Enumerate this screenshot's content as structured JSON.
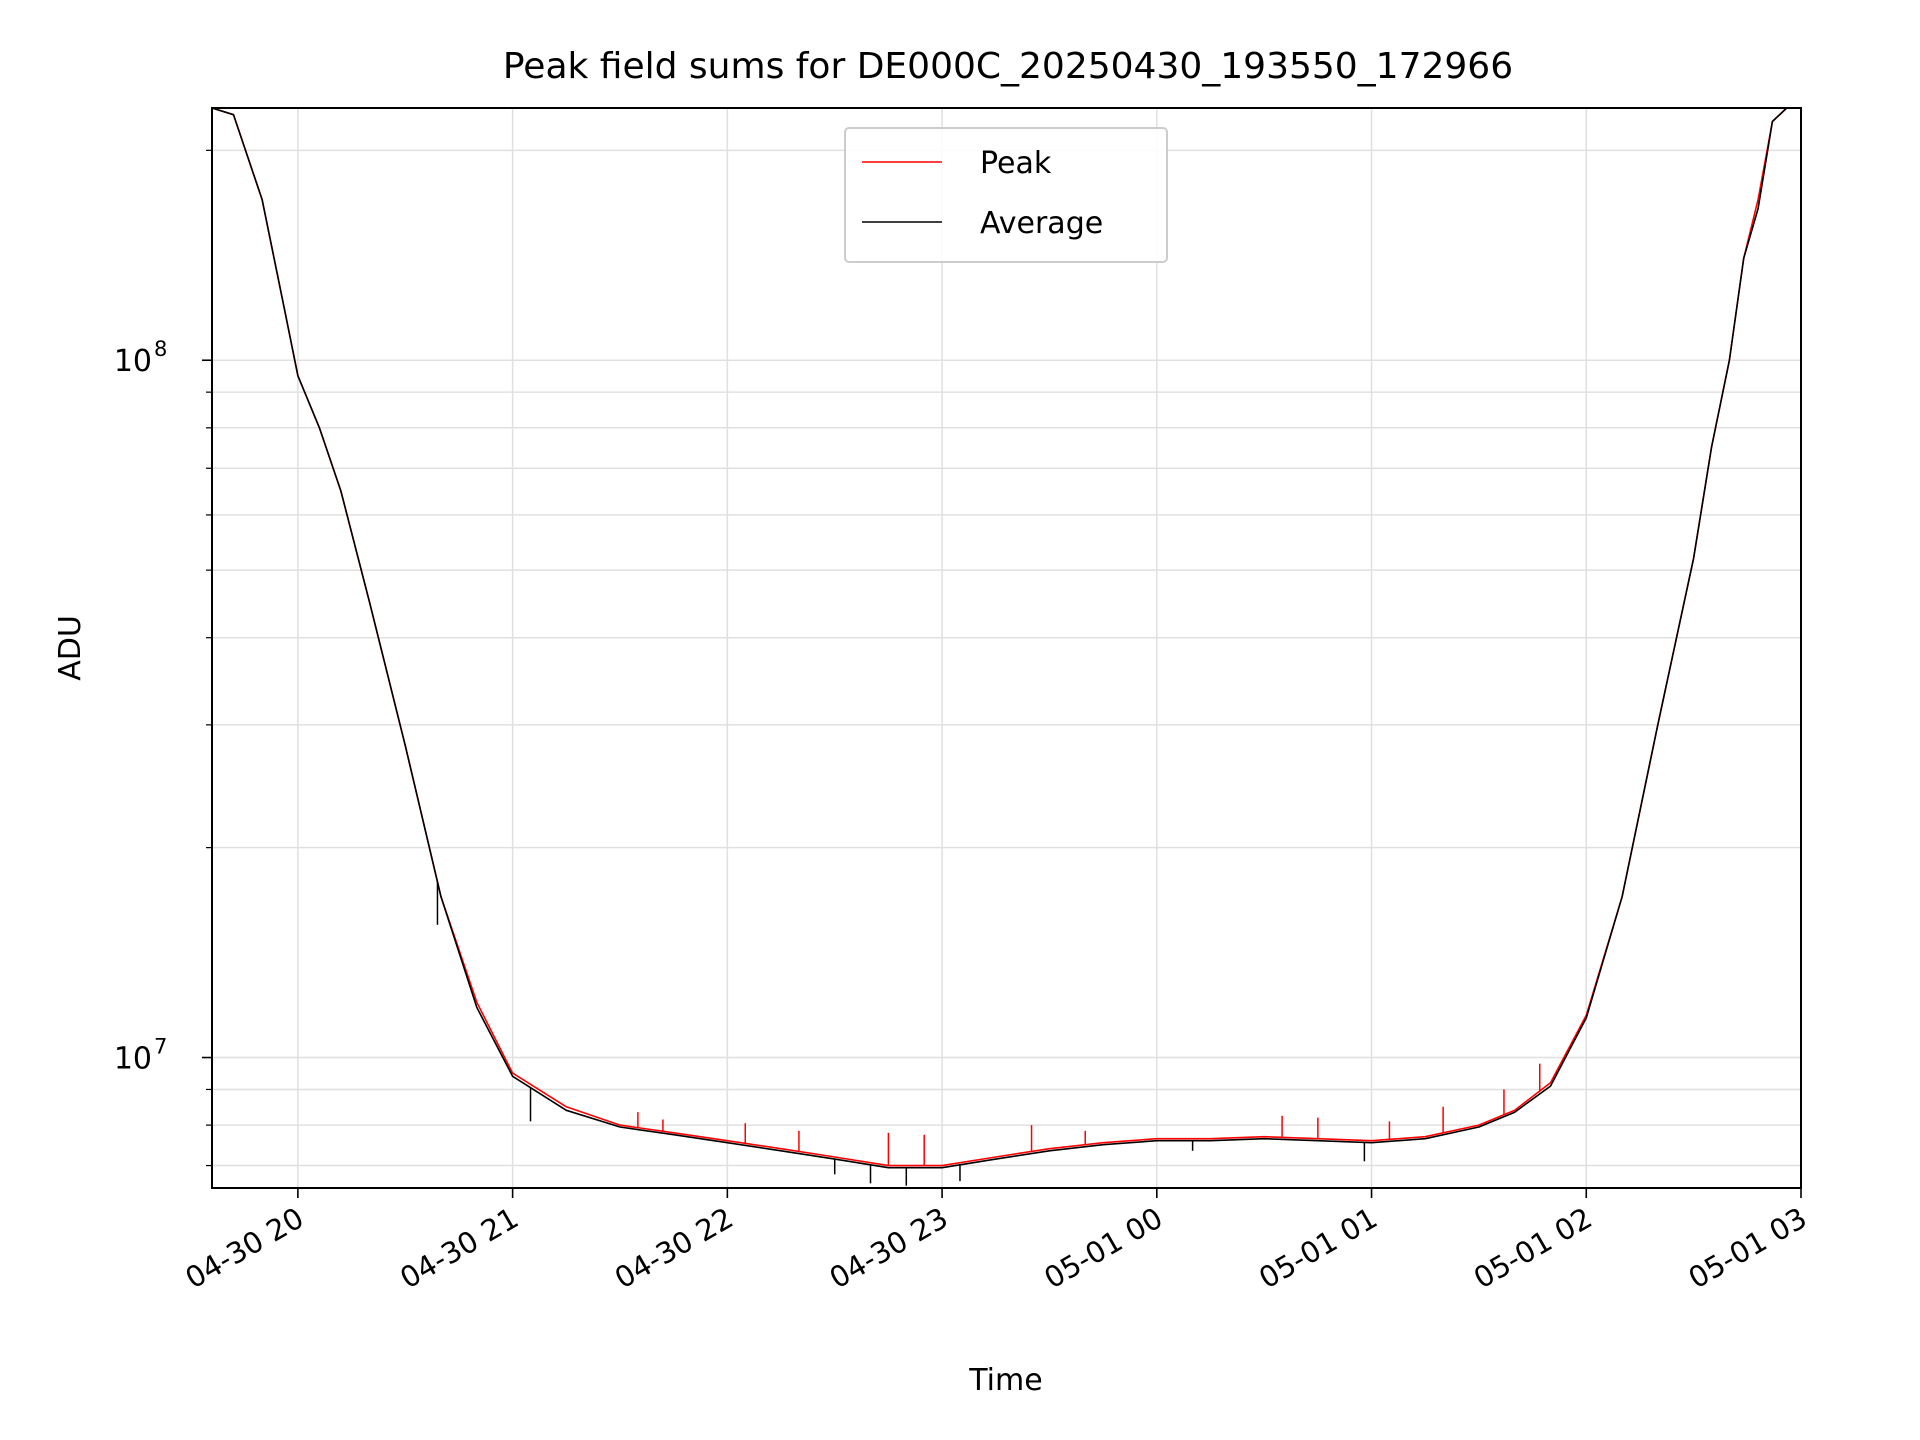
{
  "chart_data": {
    "type": "line",
    "title": "Peak field sums for DE000C_20250430_193550_172966",
    "xlabel": "Time",
    "ylabel": "ADU",
    "yscale": "log",
    "xlim": [
      "2025-04-30 19:36",
      "2025-05-01 03:00"
    ],
    "ylim": [
      6500000,
      230000000
    ],
    "x_ticks": [
      "04-30 20",
      "04-30 21",
      "04-30 22",
      "04-30 23",
      "05-01 00",
      "05-01 01",
      "05-01 02",
      "05-01 03"
    ],
    "y_ticks": [
      {
        "value": 10000000,
        "base": "10",
        "exp": "7"
      },
      {
        "value": 100000000,
        "base": "10",
        "exp": "8"
      }
    ],
    "grid": true,
    "legend_position": "upper center",
    "series": [
      {
        "name": "Peak",
        "color": "#ff0000",
        "x": [
          "2025-04-30 19:36",
          "2025-04-30 19:42",
          "2025-04-30 19:50",
          "2025-04-30 19:56",
          "2025-04-30 20:00",
          "2025-04-30 20:06",
          "2025-04-30 20:12",
          "2025-04-30 20:20",
          "2025-04-30 20:30",
          "2025-04-30 20:40",
          "2025-04-30 20:50",
          "2025-04-30 21:00",
          "2025-04-30 21:15",
          "2025-04-30 21:30",
          "2025-04-30 21:45",
          "2025-04-30 22:00",
          "2025-04-30 22:15",
          "2025-04-30 22:30",
          "2025-04-30 22:45",
          "2025-04-30 23:00",
          "2025-04-30 23:15",
          "2025-04-30 23:30",
          "2025-04-30 23:45",
          "2025-05-01 00:00",
          "2025-05-01 00:15",
          "2025-05-01 00:30",
          "2025-05-01 00:45",
          "2025-05-01 01:00",
          "2025-05-01 01:15",
          "2025-05-01 01:30",
          "2025-05-01 01:40",
          "2025-05-01 01:50",
          "2025-05-01 02:00",
          "2025-05-01 02:10",
          "2025-05-01 02:20",
          "2025-05-01 02:30",
          "2025-05-01 02:35",
          "2025-05-01 02:40",
          "2025-05-01 02:44",
          "2025-05-01 02:48",
          "2025-05-01 02:52",
          "2025-05-01 02:56"
        ],
        "values": [
          230000000,
          225000000,
          170000000,
          120000000,
          95000000,
          80000000,
          65000000,
          45000000,
          28000000,
          17000000,
          12000000,
          9500000,
          8500000,
          8000000,
          7800000,
          7600000,
          7400000,
          7200000,
          7000000,
          7000000,
          7200000,
          7400000,
          7550000,
          7650000,
          7650000,
          7700000,
          7650000,
          7600000,
          7700000,
          8000000,
          8400000,
          9200000,
          11500000,
          17000000,
          30000000,
          52000000,
          75000000,
          100000000,
          140000000,
          170000000,
          220000000,
          230000000
        ],
        "spikes": [
          {
            "x": "2025-04-30 21:35",
            "value": 8350000
          },
          {
            "x": "2025-04-30 21:42",
            "value": 8150000
          },
          {
            "x": "2025-04-30 22:05",
            "value": 8050000
          },
          {
            "x": "2025-04-30 22:20",
            "value": 7850000
          },
          {
            "x": "2025-04-30 22:45",
            "value": 7800000
          },
          {
            "x": "2025-04-30 22:55",
            "value": 7750000
          },
          {
            "x": "2025-04-30 23:25",
            "value": 8000000
          },
          {
            "x": "2025-04-30 23:40",
            "value": 7850000
          },
          {
            "x": "2025-05-01 00:35",
            "value": 8250000
          },
          {
            "x": "2025-05-01 00:45",
            "value": 8200000
          },
          {
            "x": "2025-05-01 01:05",
            "value": 8100000
          },
          {
            "x": "2025-05-01 01:20",
            "value": 8500000
          },
          {
            "x": "2025-05-01 01:37",
            "value": 9000000
          },
          {
            "x": "2025-05-01 01:47",
            "value": 9800000
          }
        ]
      },
      {
        "name": "Average",
        "color": "#000000",
        "x": [
          "2025-04-30 19:36",
          "2025-04-30 19:42",
          "2025-04-30 19:50",
          "2025-04-30 19:56",
          "2025-04-30 20:00",
          "2025-04-30 20:06",
          "2025-04-30 20:12",
          "2025-04-30 20:20",
          "2025-04-30 20:30",
          "2025-04-30 20:40",
          "2025-04-30 20:50",
          "2025-04-30 21:00",
          "2025-04-30 21:15",
          "2025-04-30 21:30",
          "2025-04-30 21:45",
          "2025-04-30 22:00",
          "2025-04-30 22:15",
          "2025-04-30 22:30",
          "2025-04-30 22:45",
          "2025-04-30 23:00",
          "2025-04-30 23:15",
          "2025-04-30 23:30",
          "2025-04-30 23:45",
          "2025-05-01 00:00",
          "2025-05-01 00:15",
          "2025-05-01 00:30",
          "2025-05-01 00:45",
          "2025-05-01 01:00",
          "2025-05-01 01:15",
          "2025-05-01 01:30",
          "2025-05-01 01:40",
          "2025-05-01 01:50",
          "2025-05-01 02:00",
          "2025-05-01 02:10",
          "2025-05-01 02:20",
          "2025-05-01 02:30",
          "2025-05-01 02:35",
          "2025-05-01 02:40",
          "2025-05-01 02:44",
          "2025-05-01 02:48",
          "2025-05-01 02:52",
          "2025-05-01 02:56"
        ],
        "values": [
          230000000,
          225000000,
          170000000,
          120000000,
          95000000,
          80000000,
          65000000,
          45000000,
          28000000,
          17000000,
          11800000,
          9400000,
          8400000,
          7950000,
          7750000,
          7550000,
          7350000,
          7150000,
          6950000,
          6950000,
          7150000,
          7350000,
          7500000,
          7600000,
          7600000,
          7650000,
          7600000,
          7550000,
          7650000,
          7950000,
          8350000,
          9100000,
          11400000,
          17000000,
          30000000,
          52000000,
          75000000,
          100000000,
          140000000,
          165000000,
          220000000,
          230000000
        ],
        "dips": [
          {
            "x": "2025-04-30 20:39",
            "value": 15500000
          },
          {
            "x": "2025-04-30 21:05",
            "value": 8100000
          },
          {
            "x": "2025-04-30 22:30",
            "value": 6800000
          },
          {
            "x": "2025-04-30 22:40",
            "value": 6600000
          },
          {
            "x": "2025-04-30 22:50",
            "value": 6550000
          },
          {
            "x": "2025-04-30 23:05",
            "value": 6650000
          },
          {
            "x": "2025-05-01 00:10",
            "value": 7350000
          },
          {
            "x": "2025-05-01 00:58",
            "value": 7100000
          }
        ]
      }
    ]
  }
}
